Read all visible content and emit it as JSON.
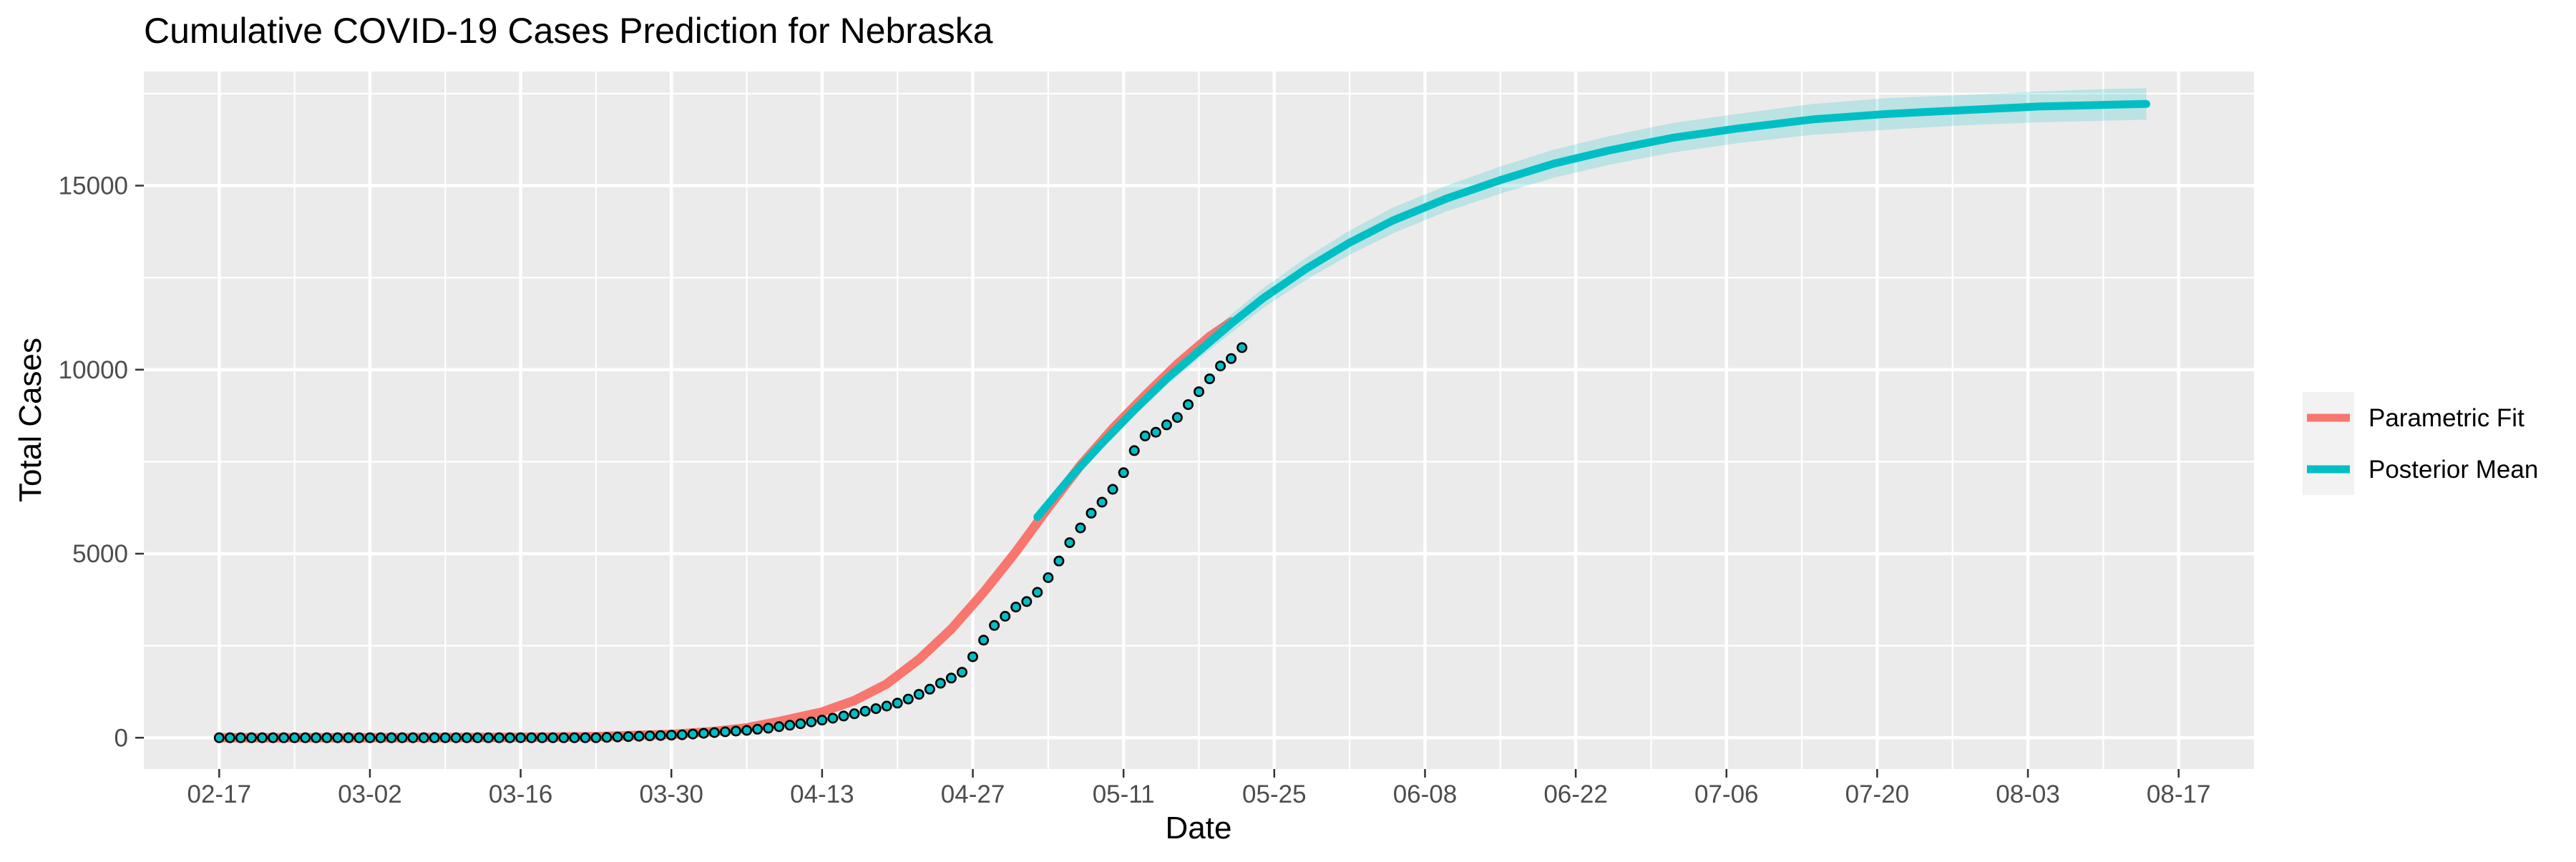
{
  "chart_data": {
    "type": "line",
    "title": "Cumulative COVID-19 Cases Prediction for Nebraska",
    "xlabel": "Date",
    "ylabel": "Total Cases",
    "x_ticks": [
      "02-17",
      "03-02",
      "03-16",
      "03-30",
      "04-13",
      "04-27",
      "05-11",
      "05-25",
      "06-08",
      "06-22",
      "07-06",
      "07-20",
      "08-03",
      "08-17"
    ],
    "y_ticks": [
      0,
      5000,
      10000,
      15000
    ],
    "xlim": [
      "2020-02-10",
      "2020-08-24"
    ],
    "ylim": [
      -850,
      18100
    ],
    "grid": true,
    "legend_position": "right",
    "series": [
      {
        "name": "Parametric Fit",
        "color": "#F8766D",
        "x": [
          "2020-02-17",
          "2020-03-02",
          "2020-03-16",
          "2020-03-23",
          "2020-03-30",
          "2020-04-03",
          "2020-04-06",
          "2020-04-09",
          "2020-04-13",
          "2020-04-16",
          "2020-04-19",
          "2020-04-22",
          "2020-04-25",
          "2020-04-28",
          "2020-05-01",
          "2020-05-04",
          "2020-05-07",
          "2020-05-10",
          "2020-05-13",
          "2020-05-16",
          "2020-05-19",
          "2020-05-21"
        ],
        "values": [
          0,
          0,
          10,
          30,
          90,
          170,
          270,
          440,
          700,
          1010,
          1460,
          2130,
          2950,
          3950,
          5050,
          6250,
          7400,
          8400,
          9300,
          10150,
          10900,
          11300
        ]
      },
      {
        "name": "Posterior Mean",
        "color": "#00BFC4",
        "x": [
          "2020-05-03",
          "2020-05-06",
          "2020-05-09",
          "2020-05-12",
          "2020-05-15",
          "2020-05-18",
          "2020-05-21",
          "2020-05-24",
          "2020-05-28",
          "2020-06-01",
          "2020-06-05",
          "2020-06-10",
          "2020-06-15",
          "2020-06-20",
          "2020-06-25",
          "2020-07-01",
          "2020-07-07",
          "2020-07-14",
          "2020-07-21",
          "2020-07-28",
          "2020-08-04",
          "2020-08-11",
          "2020-08-14"
        ],
        "values": [
          6000,
          7050,
          8000,
          8900,
          9750,
          10500,
          11250,
          11950,
          12750,
          13450,
          14050,
          14650,
          15150,
          15600,
          15950,
          16300,
          16550,
          16800,
          16950,
          17050,
          17150,
          17200,
          17220
        ],
        "band_lower": [
          5900,
          6950,
          7880,
          8750,
          9580,
          10300,
          11000,
          11680,
          12450,
          13120,
          13700,
          14300,
          14780,
          15220,
          15560,
          15900,
          16150,
          16380,
          16520,
          16640,
          16720,
          16770,
          16790
        ],
        "band_upper": [
          6100,
          7150,
          8120,
          9050,
          9920,
          10700,
          11500,
          12220,
          13050,
          13780,
          14400,
          15000,
          15520,
          15980,
          16340,
          16700,
          16950,
          17220,
          17380,
          17460,
          17560,
          17630,
          17650
        ]
      }
    ],
    "observed": {
      "start": "2020-02-17",
      "marker_fill": "#00BFC4",
      "marker_stroke": "#000000",
      "values": [
        0,
        0,
        0,
        0,
        0,
        0,
        0,
        0,
        0,
        0,
        0,
        0,
        0,
        0,
        0,
        0,
        0,
        0,
        0,
        0,
        0,
        0,
        0,
        0,
        0,
        0,
        0,
        0,
        0,
        0,
        0,
        0,
        0,
        0,
        0,
        0,
        10,
        20,
        30,
        40,
        50,
        60,
        70,
        80,
        100,
        120,
        140,
        160,
        180,
        200,
        230,
        260,
        300,
        340,
        380,
        430,
        480,
        530,
        590,
        650,
        720,
        790,
        860,
        940,
        1050,
        1180,
        1320,
        1480,
        1620,
        1780,
        2200,
        2650,
        3050,
        3300,
        3550,
        3700,
        3950,
        4350,
        4800,
        5300,
        5700,
        6100,
        6400,
        6750,
        7200,
        7800,
        8200,
        8300,
        8500,
        8700,
        9050,
        9400,
        9750,
        10100,
        10300,
        10600
      ]
    }
  }
}
